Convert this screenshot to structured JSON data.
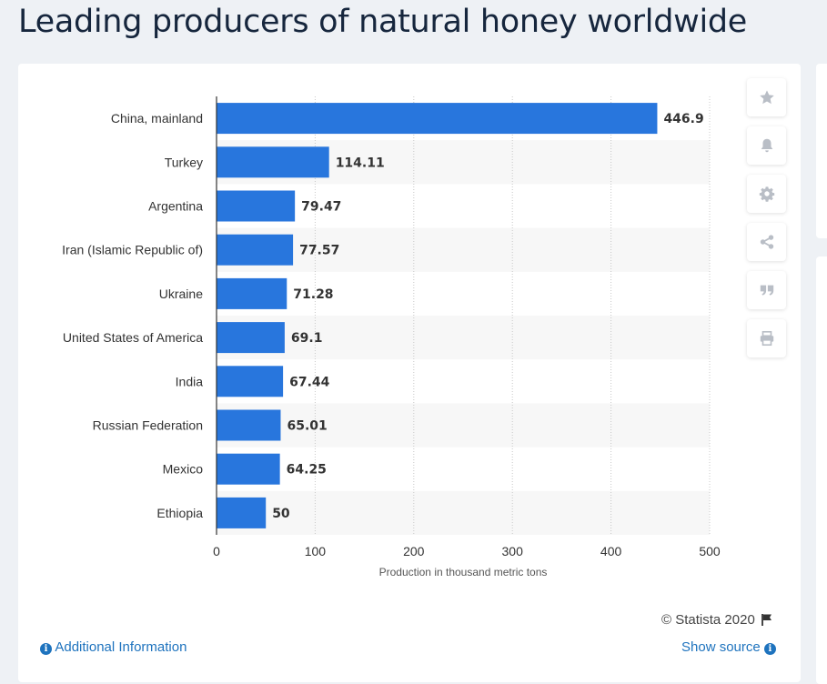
{
  "page": {
    "title": "Leading producers of natural honey worldwide"
  },
  "toolbar": {
    "items": [
      {
        "name": "favorite",
        "icon": "star-icon"
      },
      {
        "name": "notify",
        "icon": "bell-icon"
      },
      {
        "name": "settings",
        "icon": "gear-icon"
      },
      {
        "name": "share",
        "icon": "share-icon"
      },
      {
        "name": "cite",
        "icon": "quote-icon"
      },
      {
        "name": "print",
        "icon": "printer-icon"
      }
    ]
  },
  "footer": {
    "copyright": "© Statista 2020",
    "additional_info": "Additional Information",
    "show_source": "Show source"
  },
  "colors": {
    "bar": "#2876dd",
    "link": "#1e73be",
    "band": "#f7f7f7"
  },
  "chart_data": {
    "type": "bar",
    "orientation": "horizontal",
    "categories": [
      "China, mainland",
      "Turkey",
      "Argentina",
      "Iran (Islamic Republic of)",
      "Ukraine",
      "United States of America",
      "India",
      "Russian Federation",
      "Mexico",
      "Ethiopia"
    ],
    "values": [
      446.9,
      114.11,
      79.47,
      77.57,
      71.28,
      69.1,
      67.44,
      65.01,
      64.25,
      50
    ],
    "value_labels": [
      "446.9",
      "114.11",
      "79.47",
      "77.57",
      "71.28",
      "69.1",
      "67.44",
      "65.01",
      "64.25",
      "50"
    ],
    "xlabel": "Production in thousand metric tons",
    "ylabel": "",
    "xlim": [
      0,
      500
    ],
    "xticks": [
      0,
      100,
      200,
      300,
      400,
      500
    ],
    "grid": true
  }
}
